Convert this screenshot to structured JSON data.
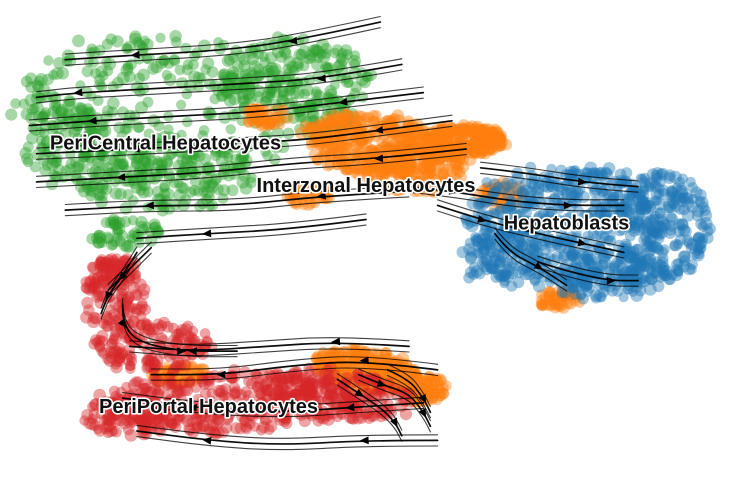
{
  "chart_data": {
    "type": "scatter",
    "title": "",
    "xlabel": "",
    "ylabel": "",
    "grid": false,
    "legend": "none (cluster names printed on the embedding)",
    "overlay": "RNA velocity streamlines with arrowheads",
    "xlim": [
      0,
      100
    ],
    "ylim": [
      0,
      100
    ],
    "clusters": [
      {
        "name": "PeriCentral Hepatocytes",
        "color": "#2ca02c",
        "label_pos": [
          22,
          71
        ],
        "blobs": [
          [
            22,
            78,
            19,
            15,
            0.38,
            -8
          ],
          [
            40,
            86,
            10,
            7,
            0.18,
            -5
          ],
          [
            8,
            72,
            6,
            9,
            0.12,
            0
          ],
          [
            22,
            64,
            12,
            7,
            0.2,
            4
          ],
          [
            16,
            52,
            5,
            3,
            0.06,
            0
          ],
          [
            44,
            77,
            4,
            4,
            0.06,
            0
          ]
        ]
      },
      {
        "name": "Interzonal Hepatocytes",
        "color": "#ff7f0e",
        "label_pos": [
          50,
          62
        ],
        "blobs": [
          [
            51,
            71,
            9,
            6,
            0.45,
            -16
          ],
          [
            64,
            72,
            5,
            3,
            0.25,
            -4
          ],
          [
            57,
            66,
            7,
            5,
            0.2,
            10
          ],
          [
            36,
            77,
            3,
            2,
            0.05,
            0
          ],
          [
            42,
            60,
            3,
            2,
            0.05,
            0
          ],
          [
            50,
            23,
            7,
            4,
            0.35,
            -18
          ],
          [
            58,
            19,
            3,
            3,
            0.1,
            0
          ],
          [
            24,
            22,
            4,
            2,
            0.07,
            0
          ],
          [
            77,
            38,
            3,
            2,
            0.06,
            0
          ],
          [
            69,
            60,
            3,
            3,
            0.05,
            0
          ]
        ]
      },
      {
        "name": "Hepatoblasts",
        "color": "#1f77b4",
        "label_pos": [
          78,
          54
        ],
        "blobs": [
          [
            81,
            53,
            16,
            12,
            0.75,
            -10
          ],
          [
            90,
            59,
            7,
            6,
            0.1,
            0
          ],
          [
            70,
            47,
            7,
            6,
            0.1,
            0
          ],
          [
            84,
            43,
            8,
            5,
            0.1,
            0
          ]
        ]
      },
      {
        "name": "PeriPortal Hepatocytes",
        "color": "#d62728",
        "label_pos": [
          28,
          15
        ],
        "blobs": [
          [
            30,
            16,
            18,
            6,
            0.45,
            3
          ],
          [
            15,
            38,
            4,
            7,
            0.12,
            0
          ],
          [
            20,
            28,
            8,
            5,
            0.18,
            0
          ],
          [
            46,
            18,
            10,
            5,
            0.2,
            -10
          ],
          [
            17,
            13,
            6,
            4,
            0.08,
            0
          ],
          [
            15,
            44,
            3,
            3,
            0.06,
            0
          ]
        ]
      }
    ],
    "streams": [
      [
        [
          52,
          97
        ],
        [
          40,
          93
        ],
        [
          30,
          91
        ],
        [
          18,
          90
        ],
        [
          8,
          89
        ]
      ],
      [
        [
          55,
          88
        ],
        [
          44,
          85
        ],
        [
          34,
          84
        ],
        [
          22,
          83
        ],
        [
          10,
          82
        ],
        [
          4,
          81
        ]
      ],
      [
        [
          58,
          82
        ],
        [
          47,
          80
        ],
        [
          36,
          78
        ],
        [
          24,
          77
        ],
        [
          12,
          76
        ],
        [
          3,
          75
        ]
      ],
      [
        [
          62,
          76
        ],
        [
          52,
          74
        ],
        [
          42,
          72
        ],
        [
          30,
          71
        ],
        [
          18,
          70
        ],
        [
          4,
          69
        ]
      ],
      [
        [
          64,
          70
        ],
        [
          52,
          68
        ],
        [
          40,
          67
        ],
        [
          28,
          65
        ],
        [
          16,
          64
        ],
        [
          4,
          63
        ]
      ],
      [
        [
          56,
          61
        ],
        [
          44,
          60
        ],
        [
          32,
          58
        ],
        [
          20,
          58
        ],
        [
          8,
          57
        ]
      ],
      [
        [
          50,
          55
        ],
        [
          40,
          53
        ],
        [
          28,
          52
        ],
        [
          18,
          51
        ]
      ],
      [
        [
          20,
          49
        ],
        [
          18,
          46
        ],
        [
          16,
          43
        ],
        [
          14,
          40
        ]
      ],
      [
        [
          18,
          48
        ],
        [
          16,
          43
        ],
        [
          14,
          39
        ],
        [
          13,
          35
        ]
      ],
      [
        [
          56,
          28
        ],
        [
          46,
          29
        ],
        [
          36,
          28
        ],
        [
          26,
          27
        ],
        [
          17,
          28
        ]
      ],
      [
        [
          60,
          23
        ],
        [
          50,
          25
        ],
        [
          40,
          24
        ],
        [
          30,
          22
        ],
        [
          20,
          22
        ]
      ],
      [
        [
          58,
          16
        ],
        [
          48,
          15
        ],
        [
          38,
          14
        ],
        [
          26,
          15
        ],
        [
          16,
          17
        ]
      ],
      [
        [
          60,
          8
        ],
        [
          50,
          8
        ],
        [
          38,
          7
        ],
        [
          28,
          8
        ],
        [
          18,
          10
        ]
      ],
      [
        [
          49,
          22
        ],
        [
          52,
          20
        ],
        [
          56,
          18
        ],
        [
          58,
          14
        ],
        [
          59,
          11
        ]
      ],
      [
        [
          46,
          21
        ],
        [
          49,
          18
        ],
        [
          52,
          15
        ],
        [
          54,
          12
        ],
        [
          55,
          9
        ]
      ],
      [
        [
          53,
          23
        ],
        [
          56,
          21
        ],
        [
          58,
          17
        ],
        [
          59,
          14
        ]
      ],
      [
        [
          16,
          37
        ],
        [
          16,
          33
        ],
        [
          18,
          29
        ],
        [
          24,
          27
        ],
        [
          32,
          27
        ]
      ],
      [
        [
          56,
          62
        ],
        [
          62,
          61
        ],
        [
          70,
          59
        ],
        [
          78,
          58
        ],
        [
          86,
          58
        ]
      ],
      [
        [
          66,
          66
        ],
        [
          72,
          65
        ],
        [
          80,
          63
        ],
        [
          88,
          62
        ]
      ],
      [
        [
          60,
          58
        ],
        [
          66,
          55
        ],
        [
          74,
          52
        ],
        [
          80,
          50
        ],
        [
          86,
          48
        ]
      ],
      [
        [
          74,
          46
        ],
        [
          78,
          44
        ],
        [
          84,
          42
        ],
        [
          88,
          42
        ]
      ],
      [
        [
          68,
          52
        ],
        [
          70,
          48
        ],
        [
          74,
          45
        ],
        [
          78,
          41
        ]
      ]
    ]
  }
}
